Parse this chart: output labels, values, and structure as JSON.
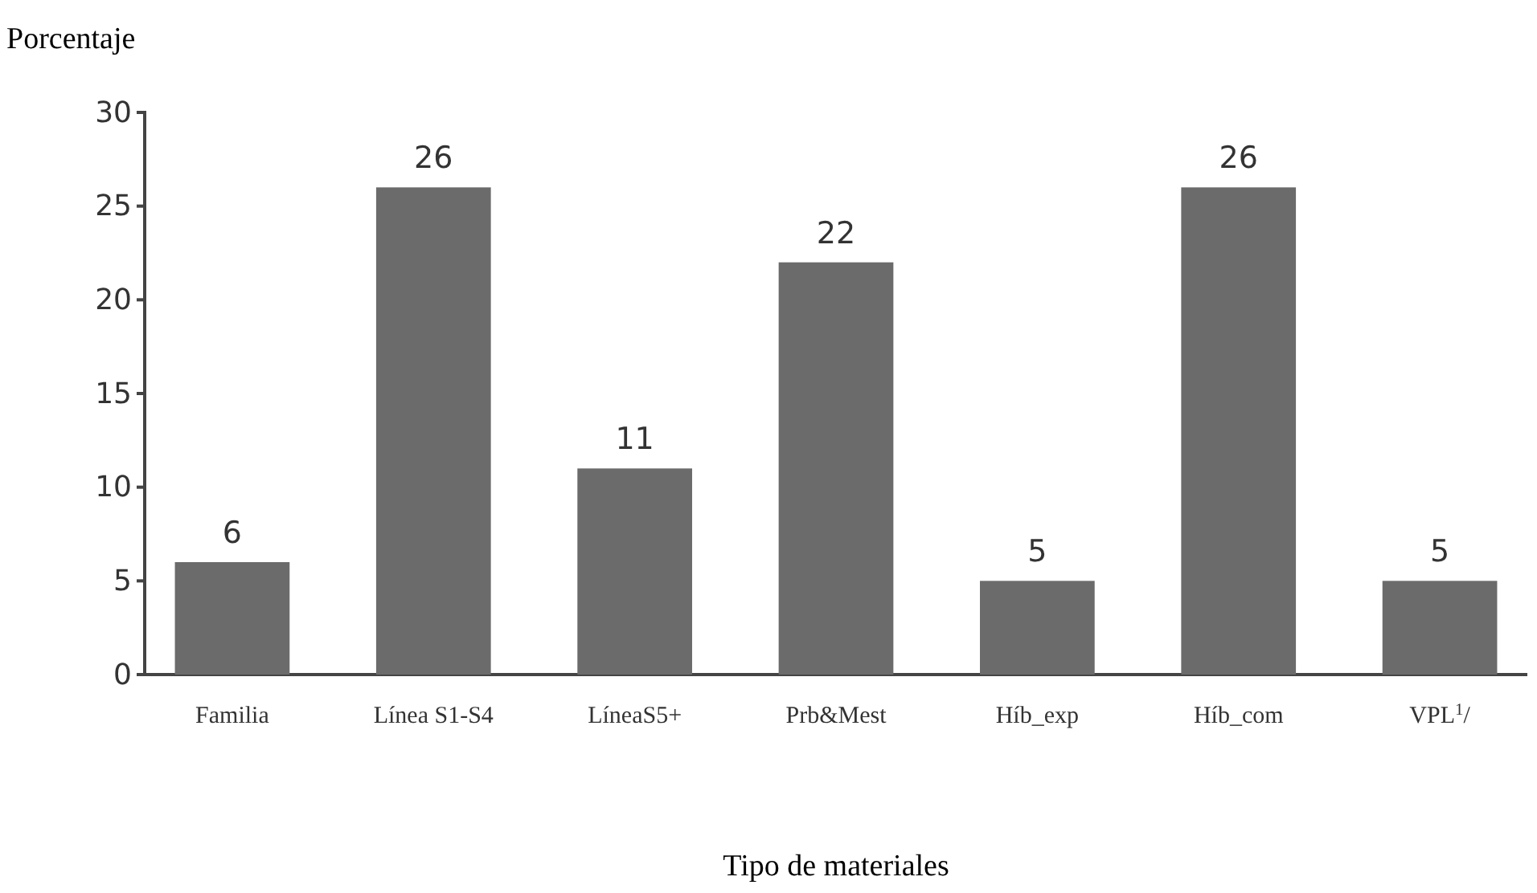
{
  "chart_data": {
    "type": "bar",
    "ylabel": "Porcentaje",
    "xlabel": "Tipo de materiales",
    "categories": [
      "Familia",
      "Línea S1-S4",
      "LíneaS5+",
      "Prb&Mest",
      "Híb_exp",
      "Híb_com",
      "VPL$^{1}$/"
    ],
    "values": [
      6,
      26,
      11,
      22,
      5,
      26,
      5
    ],
    "color": "#6b6b6b",
    "ylim": [
      0,
      30
    ],
    "yticks": [
      0,
      5,
      10,
      15,
      20,
      25,
      30
    ],
    "data_labels": true
  }
}
